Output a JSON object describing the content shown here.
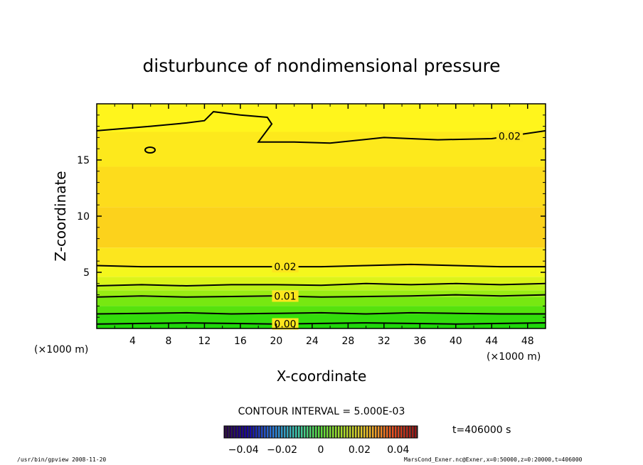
{
  "chart_data": {
    "type": "contour",
    "title": "disturbunce of nondimensional pressure",
    "xlabel": "X-coordinate",
    "ylabel": "Z-coordinate",
    "x_unit": "(×1000 m)",
    "x_unit_right": "(×1000 m)",
    "xlim": [
      0,
      50
    ],
    "ylim": [
      0,
      20
    ],
    "x_ticks": [
      "4",
      "8",
      "12",
      "16",
      "20",
      "24",
      "28",
      "32",
      "36",
      "40",
      "44",
      "48"
    ],
    "y_ticks": [
      "5",
      "10",
      "15"
    ],
    "contour_interval": "CONTOUR INTERVAL = 5.000E-03",
    "time_label": "t=406000 s",
    "colorbar": {
      "min": -0.05,
      "max": 0.05,
      "tick_labels": [
        "−0.04",
        "−0.02",
        "0",
        "0.02",
        "0.04"
      ]
    },
    "contours": [
      {
        "level": 0.0,
        "label": "0.00",
        "z": [
          0.4,
          0.45,
          0.5,
          0.45,
          0.4,
          0.45,
          0.5,
          0.45,
          0.4,
          0.45,
          0.5
        ]
      },
      {
        "level": 0.005,
        "label": "",
        "z": [
          1.3,
          1.35,
          1.4,
          1.3,
          1.35,
          1.4,
          1.3,
          1.4,
          1.35,
          1.3,
          1.3
        ]
      },
      {
        "level": 0.01,
        "label": "0.01",
        "z": [
          2.8,
          2.9,
          2.8,
          2.85,
          2.9,
          2.8,
          2.85,
          2.9,
          3.0,
          2.9,
          3.0
        ]
      },
      {
        "level": 0.015,
        "label": "",
        "z": [
          3.8,
          3.9,
          3.8,
          3.9,
          3.9,
          3.85,
          4.0,
          3.9,
          4.0,
          3.9,
          4.0
        ]
      },
      {
        "level": 0.02,
        "label": "0.02",
        "z": [
          5.6,
          5.5,
          5.5,
          5.5,
          5.5,
          5.5,
          5.6,
          5.7,
          5.6,
          5.5,
          5.5
        ]
      },
      {
        "level": 0.02,
        "label": "0.02",
        "x": [
          0,
          6,
          10,
          12,
          13,
          16,
          19,
          19.5,
          18,
          22,
          26,
          32,
          38,
          44,
          50
        ],
        "z": [
          17.6,
          18.0,
          18.3,
          18.5,
          19.3,
          19.0,
          18.8,
          18.2,
          16.6,
          16.6,
          16.5,
          17.0,
          16.8,
          16.9,
          17.6
        ]
      }
    ],
    "color_bands": [
      {
        "from": 0,
        "to": 0.5,
        "color": "#1fd60a"
      },
      {
        "from": 0.5,
        "to": 1.3,
        "color": "#33dd0c"
      },
      {
        "from": 1.3,
        "to": 2.0,
        "color": "#55e20e"
      },
      {
        "from": 2.0,
        "to": 2.8,
        "color": "#77e811"
      },
      {
        "from": 2.8,
        "to": 3.4,
        "color": "#99ec14"
      },
      {
        "from": 3.4,
        "to": 3.9,
        "color": "#bbf116"
      },
      {
        "from": 3.9,
        "to": 4.6,
        "color": "#dcf41a"
      },
      {
        "from": 4.6,
        "to": 5.5,
        "color": "#f4f71d"
      },
      {
        "from": 5.5,
        "to": 7.2,
        "color": "#fce61e"
      },
      {
        "from": 7.2,
        "to": 10.8,
        "color": "#fcd21c"
      },
      {
        "from": 10.8,
        "to": 14.4,
        "color": "#fddc1c"
      },
      {
        "from": 14.4,
        "to": 17.5,
        "color": "#fde91c"
      },
      {
        "from": 17.5,
        "to": 20,
        "color": "#fff51c"
      }
    ]
  },
  "footer": {
    "program": "/usr/bin/gpview   2008-11-20",
    "source": "MarsCond_Exner.nc@Exner,x=0:50000,z=0:20000,t=406000"
  }
}
